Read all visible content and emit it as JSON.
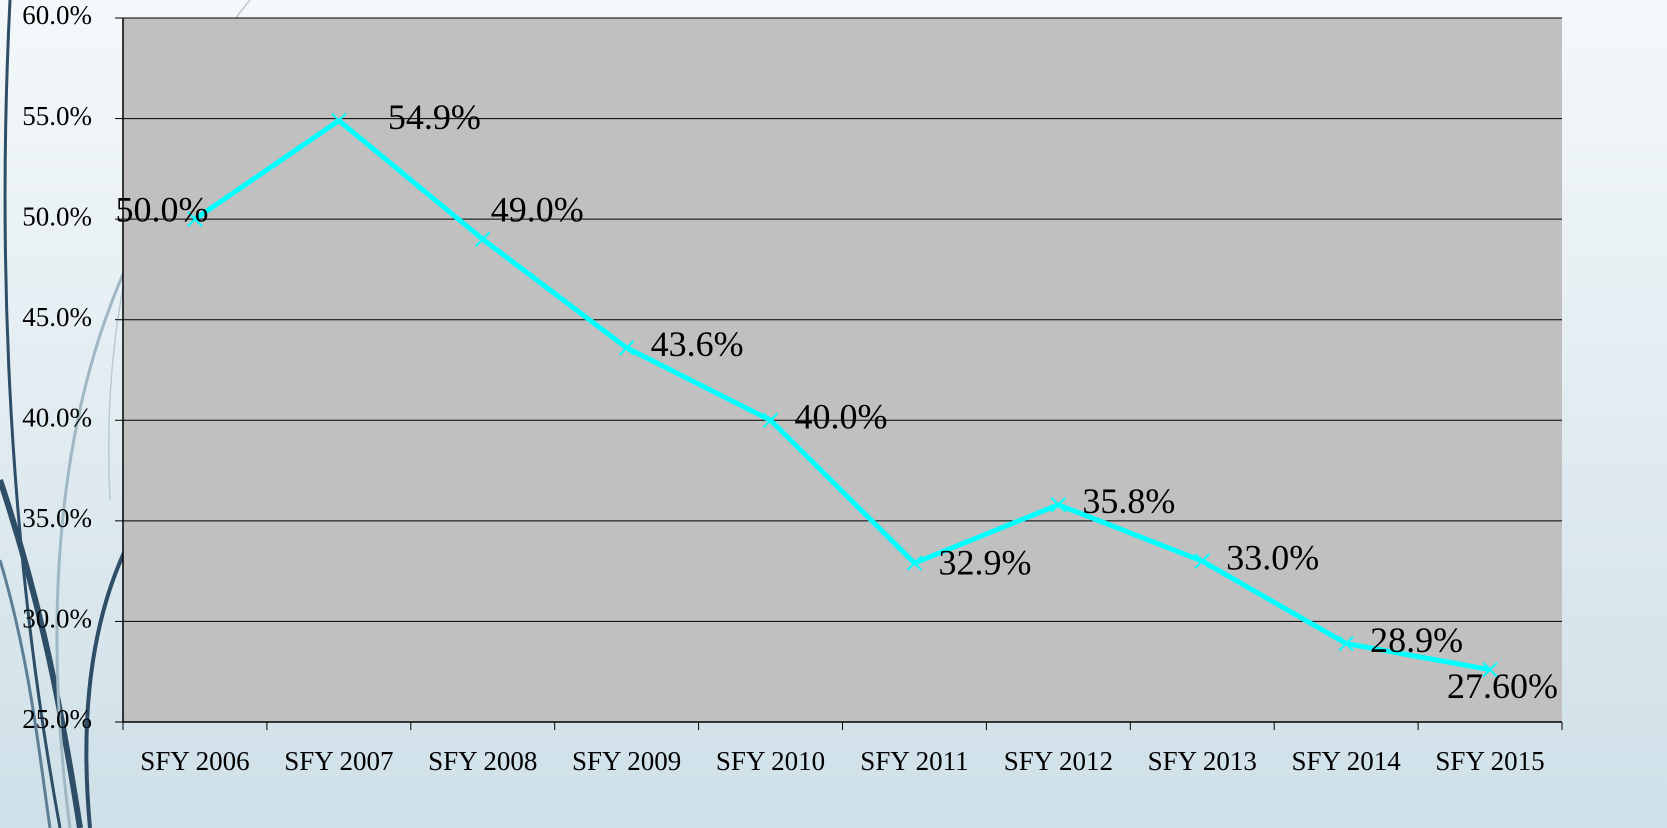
{
  "chart_data": {
    "type": "line",
    "categories": [
      "SFY 2006",
      "SFY 2007",
      "SFY 2008",
      "SFY 2009",
      "SFY 2010",
      "SFY 2011",
      "SFY 2012",
      "SFY 2013",
      "SFY 2014",
      "SFY 2015"
    ],
    "values": [
      50.0,
      54.9,
      49.0,
      43.6,
      40.0,
      32.9,
      35.8,
      33.0,
      28.9,
      27.6
    ],
    "value_labels": [
      "50.0%",
      "54.9%",
      "49.0%",
      "43.6%",
      "40.0%",
      "32.9%",
      "35.8%",
      "33.0%",
      "28.9%",
      "27.60%"
    ],
    "color": "#00ffff",
    "ylim": [
      25,
      60
    ],
    "yticks": [
      {
        "value": 25,
        "label": "25.0%"
      },
      {
        "value": 30,
        "label": "30.0%"
      },
      {
        "value": 35,
        "label": "35.0%"
      },
      {
        "value": 40,
        "label": "40.0%"
      },
      {
        "value": 45,
        "label": "45.0%"
      },
      {
        "value": 50,
        "label": "50.0%"
      },
      {
        "value": 55,
        "label": "55.0%"
      },
      {
        "value": 60,
        "label": "60.0%"
      }
    ],
    "grid": true
  }
}
